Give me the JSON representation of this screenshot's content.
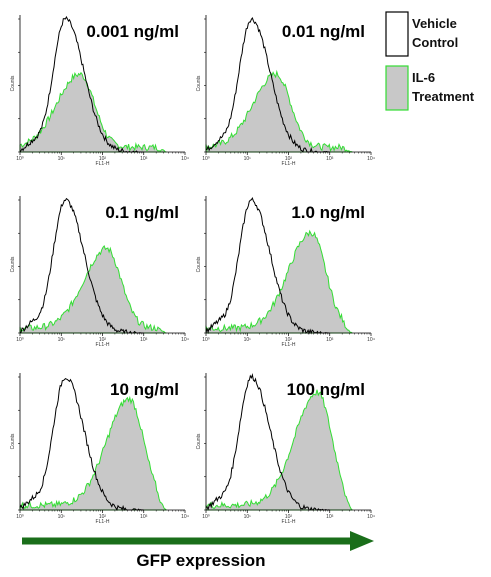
{
  "colors": {
    "vehicle_stroke": "#000000",
    "treatment_fill": "#c8c8c8",
    "treatment_stroke": "#33dd33",
    "arrow": "#1a6e1a"
  },
  "legend": [
    {
      "label": "Vehicle Control",
      "style": "outline"
    },
    {
      "label": "IL-6 Treatment",
      "style": "filled"
    }
  ],
  "gfp_label": "GFP expression",
  "chart_data": [
    {
      "type": "area",
      "label": "0.001 ng/ml",
      "xscale": "log",
      "xlim": [
        1,
        10000
      ],
      "ylim": [
        0,
        1
      ],
      "x_ticks": [
        "10⁰",
        "10¹",
        "10²",
        "10³",
        "10⁴"
      ],
      "xlabel": "FL1-H",
      "ylabel": "Counts",
      "vehicle_peak_decade": 1.1,
      "treatment_peak_decade": 1.45,
      "treatment_peak_height": 0.55
    },
    {
      "type": "area",
      "label": "0.01 ng/ml",
      "xscale": "log",
      "xlim": [
        1,
        10000
      ],
      "ylim": [
        0,
        1
      ],
      "x_ticks": [
        "10⁰",
        "10¹",
        "10²",
        "10³",
        "10⁴"
      ],
      "xlabel": "FL1-H",
      "ylabel": "Counts",
      "vehicle_peak_decade": 1.1,
      "treatment_peak_decade": 1.7,
      "treatment_peak_height": 0.55
    },
    {
      "type": "area",
      "label": "0.1 ng/ml",
      "xscale": "log",
      "xlim": [
        1,
        10000
      ],
      "ylim": [
        0,
        1
      ],
      "x_ticks": [
        "10⁰",
        "10¹",
        "10²",
        "10³",
        "10⁴"
      ],
      "xlabel": "FL1-H",
      "ylabel": "Counts",
      "vehicle_peak_decade": 1.1,
      "treatment_peak_decade": 2.1,
      "treatment_peak_height": 0.6
    },
    {
      "type": "area",
      "label": "1.0 ng/ml",
      "xscale": "log",
      "xlim": [
        1,
        10000
      ],
      "ylim": [
        0,
        1
      ],
      "x_ticks": [
        "10⁰",
        "10¹",
        "10²",
        "10³",
        "10⁴"
      ],
      "xlabel": "FL1-H",
      "ylabel": "Counts",
      "vehicle_peak_decade": 1.1,
      "treatment_peak_decade": 2.55,
      "treatment_peak_height": 0.72
    },
    {
      "type": "area",
      "label": "10 ng/ml",
      "xscale": "log",
      "xlim": [
        1,
        10000
      ],
      "ylim": [
        0,
        1
      ],
      "x_ticks": [
        "10⁰",
        "10¹",
        "10²",
        "10³",
        "10⁴"
      ],
      "xlabel": "FL1-H",
      "ylabel": "Counts",
      "vehicle_peak_decade": 1.1,
      "treatment_peak_decade": 2.65,
      "treatment_peak_height": 0.8
    },
    {
      "type": "area",
      "label": "100 ng/ml",
      "xscale": "log",
      "xlim": [
        1,
        10000
      ],
      "ylim": [
        0,
        1
      ],
      "x_ticks": [
        "10⁰",
        "10¹",
        "10²",
        "10³",
        "10⁴"
      ],
      "xlabel": "FL1-H",
      "ylabel": "Counts",
      "vehicle_peak_decade": 1.1,
      "treatment_peak_decade": 2.7,
      "treatment_peak_height": 0.85
    }
  ]
}
